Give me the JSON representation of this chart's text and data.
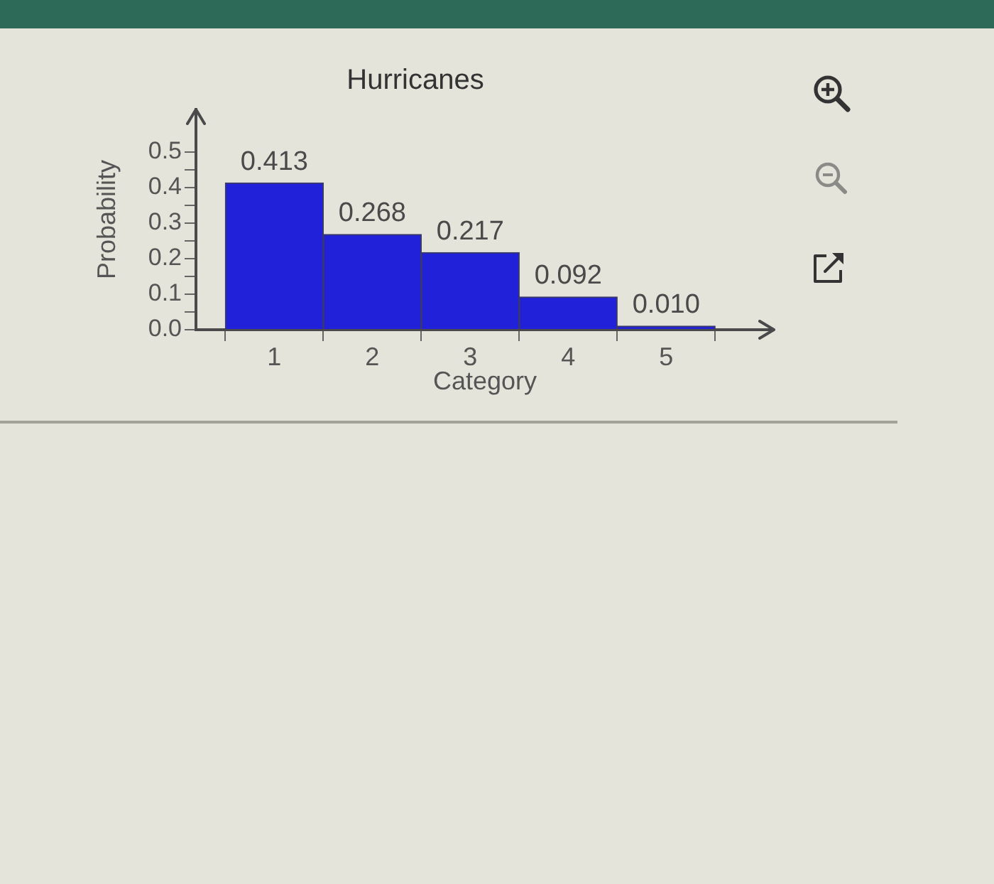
{
  "chart_data": {
    "type": "histogram",
    "title": "Hurricanes",
    "xlabel": "Category",
    "ylabel": "Probability",
    "bins": [
      0.5,
      1.5,
      2.5,
      3.5,
      4.5,
      5.5
    ],
    "values": [
      0.413,
      0.268,
      0.217,
      0.092,
      0.01
    ],
    "value_labels": [
      "0.413",
      "0.268",
      "0.217",
      "0.092",
      "0.010"
    ],
    "color": "#2121d9",
    "xlim": [
      0.2,
      6.1
    ],
    "xticks": [
      1,
      2,
      3,
      4,
      5
    ],
    "ylim": [
      0,
      0.62
    ],
    "yticks": [
      {
        "value": 0,
        "label": "0.0"
      },
      {
        "value": 0.05,
        "label": null
      },
      0.1,
      {
        "value": 0.15,
        "label": null
      },
      0.2,
      {
        "value": 0.25,
        "label": null
      },
      0.3,
      {
        "value": 0.35,
        "label": null
      },
      0.4,
      {
        "value": 0.45,
        "label": null
      },
      0.5
    ]
  }
}
